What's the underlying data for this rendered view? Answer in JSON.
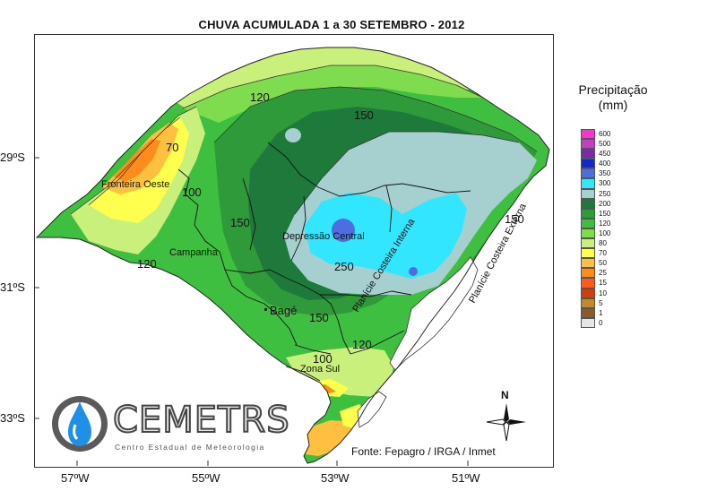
{
  "title": "CHUVA ACUMULADA  1 a 30 SETEMBRO - 2012",
  "axes": {
    "lat_labels": [
      "29ºS",
      "31ºS",
      "33ºS"
    ],
    "lon_labels": [
      "57ºW",
      "55ºW",
      "53ºW",
      "51ºW"
    ]
  },
  "legend": {
    "title_line1": "Precipitação",
    "title_line2": "(mm)",
    "entries": [
      {
        "label": "600",
        "color": "#ff33cc"
      },
      {
        "label": "500",
        "color": "#c040c0"
      },
      {
        "label": "450",
        "color": "#7a2aa8"
      },
      {
        "label": "400",
        "color": "#1428c8"
      },
      {
        "label": "350",
        "color": "#4d6ee0"
      },
      {
        "label": "300",
        "color": "#33e6ff"
      },
      {
        "label": "250",
        "color": "#a6cfcf"
      },
      {
        "label": "200",
        "color": "#1e7a3a"
      },
      {
        "label": "150",
        "color": "#2f9a3a"
      },
      {
        "label": "120",
        "color": "#3fbf3f"
      },
      {
        "label": "100",
        "color": "#7fdc4f"
      },
      {
        "label": "80",
        "color": "#c8f07a"
      },
      {
        "label": "70",
        "color": "#ffff4d"
      },
      {
        "label": "50",
        "color": "#ffc040"
      },
      {
        "label": "25",
        "color": "#ff8c1a"
      },
      {
        "label": "15",
        "color": "#ff5a1a"
      },
      {
        "label": "10",
        "color": "#d93a0a"
      },
      {
        "label": "5",
        "color": "#c08a30"
      },
      {
        "label": "1",
        "color": "#8c5a2a"
      },
      {
        "label": "0",
        "color": "#e6e6e6"
      }
    ]
  },
  "map": {
    "regions": [
      "Fronteira Oeste",
      "Campanha",
      "Depressão Central",
      "Planície Costeira Interna",
      "Planície Costeira Externa",
      "Zona Sul"
    ],
    "city": "Bagé",
    "contour_labels": [
      "120",
      "150",
      "70",
      "100",
      "150",
      "120",
      "250",
      "150",
      "150",
      "120",
      "100"
    ]
  },
  "north_label": "N",
  "logo": {
    "name": "CEMETRS",
    "subtitle": "Centro Estadual de Meteorologia"
  },
  "source": "Fonte: Fepagro / IRGA / Inmet"
}
